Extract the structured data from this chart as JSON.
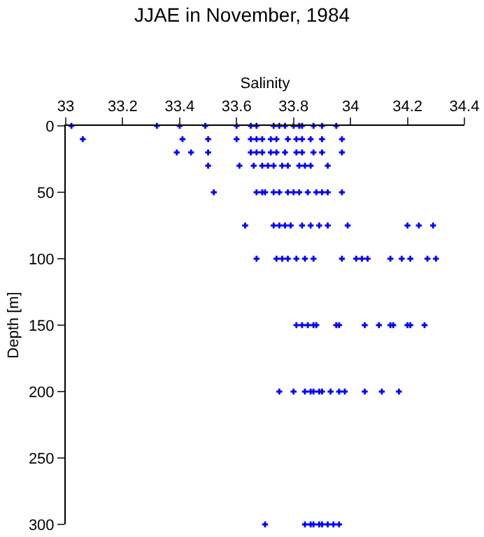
{
  "chart_data": {
    "type": "scatter",
    "title": "JJAE in November, 1984",
    "xlabel": "Salinity",
    "ylabel": "Depth [m]",
    "xlim": [
      33,
      34.4
    ],
    "xticks": [
      33,
      33.2,
      33.4,
      33.6,
      33.8,
      34,
      34.2,
      34.4
    ],
    "ylim": [
      300,
      0
    ],
    "yticks": [
      0,
      50,
      100,
      150,
      200,
      250,
      300
    ],
    "marker": "cross",
    "series": [
      {
        "color": "#0000ff",
        "x": [
          33.02,
          33.32,
          33.4,
          33.49,
          33.6,
          33.65,
          33.67,
          33.73,
          33.75,
          33.77,
          33.8,
          33.82,
          33.83,
          33.87,
          33.9,
          33.95,
          33.06,
          33.41,
          33.5,
          33.6,
          33.65,
          33.67,
          33.69,
          33.72,
          33.74,
          33.78,
          33.81,
          33.83,
          33.86,
          33.9,
          33.97,
          33.39,
          33.44,
          33.5,
          33.65,
          33.67,
          33.69,
          33.72,
          33.74,
          33.77,
          33.81,
          33.83,
          33.87,
          33.9,
          33.97,
          33.5,
          33.61,
          33.66,
          33.69,
          33.71,
          33.73,
          33.76,
          33.78,
          33.82,
          33.84,
          33.86,
          33.92,
          33.52,
          33.67,
          33.69,
          33.7,
          33.73,
          33.75,
          33.78,
          33.8,
          33.82,
          33.85,
          33.88,
          33.9,
          33.92,
          33.97,
          33.63,
          33.73,
          33.75,
          33.77,
          33.79,
          33.83,
          33.86,
          33.89,
          33.92,
          33.99,
          34.2,
          34.24,
          34.29,
          33.67,
          33.74,
          33.76,
          33.78,
          33.81,
          33.84,
          33.87,
          33.97,
          34.02,
          34.04,
          34.06,
          34.14,
          34.18,
          34.21,
          34.27,
          34.3,
          33.81,
          33.83,
          33.85,
          33.87,
          33.88,
          33.95,
          33.96,
          34.05,
          34.1,
          34.14,
          34.15,
          34.2,
          34.21,
          34.26,
          33.75,
          33.8,
          33.84,
          33.86,
          33.87,
          33.89,
          33.9,
          33.93,
          33.96,
          33.98,
          34.05,
          34.11,
          34.17,
          33.7,
          33.84,
          33.86,
          33.87,
          33.89,
          33.9,
          33.92,
          33.94,
          33.96
        ],
        "values": [
          0,
          0,
          0,
          0,
          0,
          0,
          0,
          0,
          0,
          0,
          0,
          0,
          0,
          0,
          0,
          0,
          10,
          10,
          10,
          10,
          10,
          10,
          10,
          10,
          10,
          10,
          10,
          10,
          10,
          10,
          10,
          20,
          20,
          20,
          20,
          20,
          20,
          20,
          20,
          20,
          20,
          20,
          20,
          20,
          20,
          30,
          30,
          30,
          30,
          30,
          30,
          30,
          30,
          30,
          30,
          30,
          30,
          50,
          50,
          50,
          50,
          50,
          50,
          50,
          50,
          50,
          50,
          50,
          50,
          50,
          50,
          75,
          75,
          75,
          75,
          75,
          75,
          75,
          75,
          75,
          75,
          75,
          75,
          75,
          100,
          100,
          100,
          100,
          100,
          100,
          100,
          100,
          100,
          100,
          100,
          100,
          100,
          100,
          100,
          100,
          150,
          150,
          150,
          150,
          150,
          150,
          150,
          150,
          150,
          150,
          150,
          150,
          150,
          150,
          200,
          200,
          200,
          200,
          200,
          200,
          200,
          200,
          200,
          200,
          200,
          200,
          200,
          300,
          300,
          300,
          300,
          300,
          300,
          300,
          300,
          300
        ]
      }
    ]
  }
}
